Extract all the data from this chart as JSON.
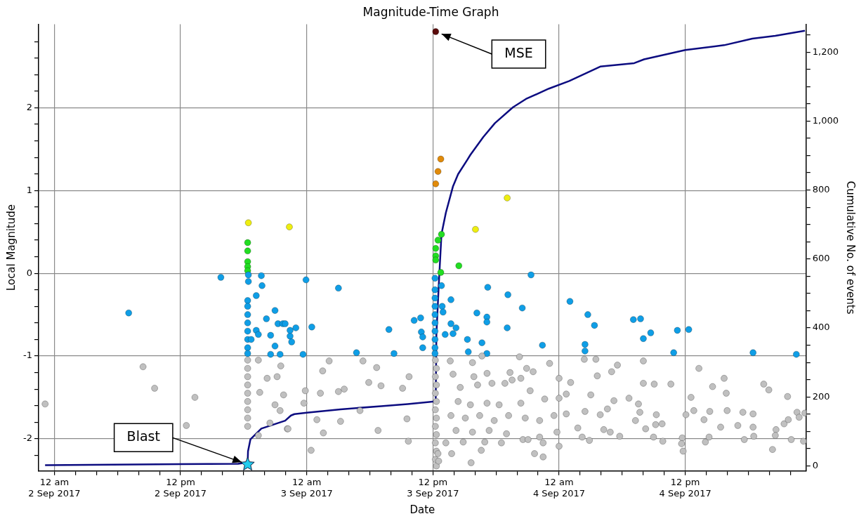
{
  "chart_data": {
    "type": "scatter",
    "title": "Magnitude-Time Graph",
    "xlabel": "Date",
    "ylabel": "Local Magnitude",
    "y2label": "Cumulative No. of events",
    "xlim": [
      "2017-09-01T22:30",
      "2017-09-04T23:30"
    ],
    "xticks": [
      {
        "value": "2017-09-02T00:00",
        "label": "12 am\n2 Sep 2017"
      },
      {
        "value": "2017-09-02T02:00",
        "label": null
      },
      {
        "value": "2017-09-02T04:00",
        "label": null
      },
      {
        "value": "2017-09-02T06:00",
        "label": null
      },
      {
        "value": "2017-09-02T08:00",
        "label": null
      },
      {
        "value": "2017-09-02T10:00",
        "label": null
      },
      {
        "value": "2017-09-02T12:00",
        "label": "12 pm\n2 Sep 2017"
      },
      {
        "value": "2017-09-02T14:00",
        "label": null
      },
      {
        "value": "2017-09-02T16:00",
        "label": null
      },
      {
        "value": "2017-09-02T18:00",
        "label": null
      },
      {
        "value": "2017-09-02T20:00",
        "label": null
      },
      {
        "value": "2017-09-02T22:00",
        "label": null
      },
      {
        "value": "2017-09-03T00:00",
        "label": "12 am\n3 Sep 2017"
      },
      {
        "value": "2017-09-03T02:00",
        "label": null
      },
      {
        "value": "2017-09-03T04:00",
        "label": null
      },
      {
        "value": "2017-09-03T06:00",
        "label": null
      },
      {
        "value": "2017-09-03T08:00",
        "label": null
      },
      {
        "value": "2017-09-03T10:00",
        "label": null
      },
      {
        "value": "2017-09-03T12:00",
        "label": "12 pm\n3 Sep 2017"
      },
      {
        "value": "2017-09-03T14:00",
        "label": null
      },
      {
        "value": "2017-09-03T16:00",
        "label": null
      },
      {
        "value": "2017-09-03T18:00",
        "label": null
      },
      {
        "value": "2017-09-03T20:00",
        "label": null
      },
      {
        "value": "2017-09-03T22:00",
        "label": null
      },
      {
        "value": "2017-09-04T00:00",
        "label": "12 am\n4 Sep 2017"
      },
      {
        "value": "2017-09-04T02:00",
        "label": null
      },
      {
        "value": "2017-09-04T04:00",
        "label": null
      },
      {
        "value": "2017-09-04T06:00",
        "label": null
      },
      {
        "value": "2017-09-04T08:00",
        "label": null
      },
      {
        "value": "2017-09-04T10:00",
        "label": null
      },
      {
        "value": "2017-09-04T12:00",
        "label": "12 pm\n4 Sep 2017"
      },
      {
        "value": "2017-09-04T14:00",
        "label": null
      },
      {
        "value": "2017-09-04T16:00",
        "label": null
      },
      {
        "value": "2017-09-04T18:00",
        "label": null
      },
      {
        "value": "2017-09-04T20:00",
        "label": null
      },
      {
        "value": "2017-09-04T22:00",
        "label": null
      }
    ],
    "ylim": [
      -2.39,
      3.01
    ],
    "yticks": [
      {
        "value": -2.2,
        "label": null
      },
      -2,
      {
        "value": -1.8,
        "label": null
      },
      {
        "value": -1.6,
        "label": null
      },
      {
        "value": -1.4,
        "label": null
      },
      {
        "value": -1.2,
        "label": null
      },
      -1,
      {
        "value": -0.8,
        "label": null
      },
      {
        "value": -0.6,
        "label": null
      },
      {
        "value": -0.4,
        "label": null
      },
      {
        "value": -0.2,
        "label": null
      },
      0,
      {
        "value": 0.2,
        "label": null
      },
      {
        "value": 0.4,
        "label": null
      },
      {
        "value": 0.6,
        "label": null
      },
      {
        "value": 0.8,
        "label": null
      },
      1,
      {
        "value": 1.2,
        "label": null
      },
      {
        "value": 1.4,
        "label": null
      },
      {
        "value": 1.6,
        "label": null
      },
      {
        "value": 1.8,
        "label": null
      },
      2,
      {
        "value": 2.2,
        "label": null
      },
      {
        "value": 2.4,
        "label": null
      },
      {
        "value": 2.6,
        "label": null
      },
      {
        "value": 2.8,
        "label": null
      }
    ],
    "y2lim": [
      -15,
      1281
    ],
    "y2ticks": [
      0,
      {
        "value": 50,
        "label": null
      },
      {
        "value": 100,
        "label": null
      },
      {
        "value": 150,
        "label": null
      },
      200,
      {
        "value": 250,
        "label": null
      },
      {
        "value": 300,
        "label": null
      },
      {
        "value": 350,
        "label": null
      },
      400,
      {
        "value": 450,
        "label": null
      },
      {
        "value": 500,
        "label": null
      },
      {
        "value": 550,
        "label": null
      },
      600,
      {
        "value": 650,
        "label": null
      },
      {
        "value": 700,
        "label": null
      },
      {
        "value": 750,
        "label": null
      },
      800,
      {
        "value": 850,
        "label": null
      },
      {
        "value": 900,
        "label": null
      },
      {
        "value": 950,
        "label": null
      },
      {
        "value": 1000,
        "label": "1,000"
      },
      {
        "value": 1050,
        "label": null
      },
      {
        "value": 1100,
        "label": null
      },
      {
        "value": 1150,
        "label": null
      },
      {
        "value": 1200,
        "label": "1,200"
      },
      {
        "value": 1250,
        "label": null
      }
    ],
    "grid": true,
    "legend": false,
    "marker": "circle",
    "annotations": [
      {
        "text": "MSE",
        "x": "2017-09-03T12:16",
        "y": 2.92
      },
      {
        "text": "Blast",
        "x": "2017-09-02T18:23",
        "y": -2.31
      }
    ],
    "series": [
      {
        "color": "#c0c0c0",
        "x": [
          "2017-09-01T23:07",
          "2017-09-02T08:26",
          "2017-09-02T09:32",
          "2017-09-02T13:22",
          "2017-09-02T12:33",
          "2017-09-02T18:23",
          "2017-09-02T18:23",
          "2017-09-02T18:23",
          "2017-09-02T18:23",
          "2017-09-02T18:23",
          "2017-09-02T18:23",
          "2017-09-02T18:23",
          "2017-09-02T18:23",
          "2017-09-02T18:23",
          "2017-09-02T19:24",
          "2017-09-02T20:14",
          "2017-09-02T21:11",
          "2017-09-02T21:32",
          "2017-09-02T19:32",
          "2017-09-02T20:59",
          "2017-09-02T21:48",
          "2017-09-02T21:28",
          "2017-09-02T19:24",
          "2017-09-02T22:09",
          "2017-09-02T20:30",
          "2017-09-03T02:08",
          "2017-09-03T01:31",
          "2017-09-03T01:18",
          "2017-09-03T03:01",
          "2017-09-03T03:34",
          "2017-09-03T00:58",
          "2017-09-03T01:35",
          "2017-09-03T03:13",
          "2017-09-03T00:25",
          "2017-09-03T05:21",
          "2017-09-03T05:54",
          "2017-09-03T07:04",
          "2017-09-03T06:39",
          "2017-09-03T05:04",
          "2017-09-03T06:47",
          "2017-09-03T09:07",
          "2017-09-03T09:44",
          "2017-09-03T09:32",
          "2017-09-03T09:40",
          "2017-09-02T23:44",
          "2017-09-02T23:52",
          "2017-09-02T22:13",
          "2017-09-03T12:14",
          "2017-09-03T12:20",
          "2017-09-03T12:14",
          "2017-09-03T12:20",
          "2017-09-03T12:14",
          "2017-09-03T12:20",
          "2017-09-03T12:14",
          "2017-09-03T12:20",
          "2017-09-03T12:14",
          "2017-09-03T12:20",
          "2017-09-03T12:14",
          "2017-09-03T12:20",
          "2017-09-03T12:14",
          "2017-09-03T12:20",
          "2017-09-03T13:39",
          "2017-09-03T15:46",
          "2017-09-03T16:40",
          "2017-09-03T20:14",
          "2017-09-03T23:06",
          "2017-09-03T13:55",
          "2017-09-03T15:54",
          "2017-09-03T17:09",
          "2017-09-03T19:20",
          "2017-09-03T20:55",
          "2017-09-03T21:32",
          "2017-09-03T19:32",
          "2017-09-03T20:22",
          "2017-09-04T00:00",
          "2017-09-03T14:36",
          "2017-09-03T16:15",
          "2017-09-03T17:37",
          "2017-09-03T18:51",
          "2017-09-03T21:15",
          "2017-09-04T00:41",
          "2017-09-03T14:24",
          "2017-09-03T15:34",
          "2017-09-03T17:09",
          "2017-09-03T18:18",
          "2017-09-03T20:22",
          "2017-09-03T22:38",
          "2017-09-04T00:00",
          "2017-09-03T13:43",
          "2017-09-03T15:05",
          "2017-09-03T16:27",
          "2017-09-03T17:50",
          "2017-09-03T19:12",
          "2017-09-03T20:47",
          "2017-09-03T22:09",
          "2017-09-03T23:31",
          "2017-09-04T00:41",
          "2017-09-03T14:12",
          "2017-09-03T15:46",
          "2017-09-03T17:21",
          "2017-09-03T19:00",
          "2017-09-03T20:34",
          "2017-09-03T22:09",
          "2017-09-03T23:48",
          "2017-09-03T13:14",
          "2017-09-03T14:53",
          "2017-09-03T16:56",
          "2017-09-03T18:31",
          "2017-09-03T21:03",
          "2017-09-03T22:29",
          "2017-09-04T00:00",
          "2017-09-03T13:47",
          "2017-09-03T16:36",
          "2017-09-03T15:38",
          "2017-09-03T21:40",
          "2017-09-03T22:29",
          "2017-09-03T12:33",
          "2017-09-03T12:29",
          "2017-09-04T02:24",
          "2017-09-04T03:30",
          "2017-09-04T05:33",
          "2017-09-04T05:00",
          "2017-09-04T03:38",
          "2017-09-04T01:06",
          "2017-09-04T08:01",
          "2017-09-04T08:01",
          "2017-09-04T09:03",
          "2017-09-04T10:38",
          "2017-09-04T13:18",
          "2017-09-04T15:42",
          "2017-09-04T14:36",
          "2017-09-04T12:33",
          "2017-09-04T15:54",
          "2017-09-04T19:28",
          "2017-09-04T19:57",
          "2017-09-04T21:44",
          "2017-09-04T06:39",
          "2017-09-04T07:33",
          "2017-09-04T05:13",
          "2017-09-04T03:01",
          "2017-09-04T02:28",
          "2017-09-04T03:55",
          "2017-09-04T04:36",
          "2017-09-04T07:41",
          "2017-09-04T09:15",
          "2017-09-04T12:04",
          "2017-09-04T12:49",
          "2017-09-04T14:20",
          "2017-09-04T15:59",
          "2017-09-04T17:29",
          "2017-09-04T18:27",
          "2017-09-04T22:38",
          "2017-09-04T23:23",
          "2017-09-04T22:50",
          "2017-09-04T04:52",
          "2017-09-04T04:15",
          "2017-09-04T01:47",
          "2017-09-04T07:16",
          "2017-09-04T08:14",
          "2017-09-04T09:11",
          "2017-09-04T09:48",
          "2017-09-04T13:47",
          "2017-09-04T15:22",
          "2017-09-04T17:00",
          "2017-09-04T18:27",
          "2017-09-04T21:24",
          "2017-09-04T21:48",
          "2017-09-04T20:38",
          "2017-09-04T05:46",
          "2017-09-04T08:59",
          "2017-09-04T09:52",
          "2017-09-04T11:43",
          "2017-09-04T13:55",
          "2017-09-04T14:16",
          "2017-09-04T17:37",
          "2017-09-04T18:31",
          "2017-09-04T20:34",
          "2017-09-04T22:05",
          "2017-09-04T23:15",
          "2017-09-04T11:39",
          "2017-09-04T11:48",
          "2017-09-04T20:18",
          "2017-09-04T02:53",
          "2017-09-04T02:12"
        ],
        "values": [
          -1.58,
          -1.13,
          -1.39,
          -1.5,
          -1.84,
          -1.05,
          -1.15,
          -1.25,
          -1.35,
          -1.45,
          -1.55,
          -1.65,
          -1.75,
          -1.85,
          -1.05,
          -1.27,
          -1.25,
          -1.12,
          -1.44,
          -1.59,
          -1.47,
          -1.66,
          -1.96,
          -1.88,
          -1.81,
          -1.06,
          -1.18,
          -1.45,
          -1.43,
          -1.4,
          -1.77,
          -1.93,
          -1.79,
          -2.14,
          -1.06,
          -1.32,
          -1.36,
          -1.14,
          -1.66,
          -1.9,
          -1.39,
          -1.25,
          -1.76,
          -2.03,
          -1.57,
          -1.42,
          -1.88,
          -1.05,
          -1.15,
          -1.25,
          -1.35,
          -1.45,
          -1.55,
          -1.65,
          -1.75,
          -1.85,
          -1.95,
          -2.05,
          -2.15,
          -2.25,
          -2.33,
          -1.06,
          -1.08,
          -1.0,
          -1.01,
          -1.09,
          -1.22,
          -1.25,
          -1.21,
          -1.2,
          -1.15,
          -1.19,
          -1.29,
          -1.27,
          -1.27,
          -1.38,
          -1.35,
          -1.33,
          -1.33,
          -1.42,
          -1.46,
          -1.55,
          -1.59,
          -1.57,
          -1.59,
          -1.57,
          -1.52,
          -1.51,
          -1.72,
          -1.75,
          -1.72,
          -1.78,
          -1.72,
          -1.75,
          -1.78,
          -1.72,
          -1.7,
          -1.9,
          -1.92,
          -1.9,
          -1.94,
          -2.01,
          -1.98,
          -1.92,
          -2.05,
          -2.04,
          -2.04,
          -2.05,
          -2.01,
          -2.05,
          -2.09,
          -2.18,
          -2.14,
          -2.29,
          -2.18,
          -2.22,
          -2.27,
          -2.18,
          -1.04,
          -1.04,
          -1.11,
          -1.19,
          -1.24,
          -1.32,
          -1.06,
          -1.33,
          -1.34,
          -1.34,
          -1.15,
          -1.27,
          -1.37,
          -1.5,
          -1.45,
          -1.34,
          -1.41,
          -1.49,
          -1.51,
          -1.58,
          -1.54,
          -1.47,
          -1.67,
          -1.71,
          -1.64,
          -1.68,
          -1.71,
          -1.71,
          -1.66,
          -1.67,
          -1.66,
          -1.68,
          -1.7,
          -1.68,
          -1.69,
          -1.74,
          -1.92,
          -1.89,
          -1.87,
          -1.78,
          -1.88,
          -1.83,
          -1.82,
          -1.77,
          -1.86,
          -1.84,
          -1.86,
          -1.82,
          -1.77,
          -1.89,
          -1.97,
          -1.98,
          -2.03,
          -1.99,
          -2.04,
          -1.98,
          -2.01,
          -1.97,
          -1.96,
          -2.01,
          -2.03,
          -2.06,
          -2.15,
          -2.13,
          -2.02,
          -1.98
        ]
      },
      {
        "color": "#0f9ee6",
        "x": [
          "2017-09-02T07:04",
          "2017-09-02T15:50",
          "2017-09-02T18:27",
          "2017-09-02T18:27",
          "2017-09-02T19:41",
          "2017-09-02T19:45",
          "2017-09-02T19:12",
          "2017-09-02T18:23",
          "2017-09-02T18:23",
          "2017-09-02T18:23",
          "2017-09-02T18:23",
          "2017-09-02T18:23",
          "2017-09-02T18:23",
          "2017-09-02T18:23",
          "2017-09-02T18:23",
          "2017-09-02T20:59",
          "2017-09-02T20:10",
          "2017-09-02T21:16",
          "2017-09-02T21:44",
          "2017-09-02T19:12",
          "2017-09-02T19:24",
          "2017-09-02T20:34",
          "2017-09-02T18:43",
          "2017-09-02T20:59",
          "2017-09-02T20:34",
          "2017-09-02T21:28",
          "2017-09-02T22:25",
          "2017-09-02T21:57",
          "2017-09-02T22:25",
          "2017-09-02T22:58",
          "2017-09-02T22:34",
          "2017-09-02T23:39",
          "2017-09-02T23:56",
          "2017-09-03T00:29",
          "2017-09-03T03:01",
          "2017-09-03T04:44",
          "2017-09-03T07:49",
          "2017-09-03T08:18",
          "2017-09-03T10:13",
          "2017-09-03T10:50",
          "2017-09-03T10:54",
          "2017-09-03T11:02",
          "2017-09-03T11:02",
          "2017-09-03T12:12",
          "2017-09-03T12:12",
          "2017-09-03T12:12",
          "2017-09-03T12:12",
          "2017-09-03T12:12",
          "2017-09-03T12:12",
          "2017-09-03T12:12",
          "2017-09-03T12:12",
          "2017-09-03T12:12",
          "2017-09-03T12:12",
          "2017-09-03T12:49",
          "2017-09-03T13:43",
          "2017-09-03T12:53",
          "2017-09-03T12:58",
          "2017-09-03T13:43",
          "2017-09-03T14:12",
          "2017-09-03T13:55",
          "2017-09-03T13:10",
          "2017-09-03T15:17",
          "2017-09-03T15:22",
          "2017-09-03T16:11",
          "2017-09-03T16:40",
          "2017-09-03T17:08",
          "2017-09-03T17:08",
          "2017-09-03T17:13",
          "2017-09-03T17:08",
          "2017-09-03T19:08",
          "2017-09-03T19:04",
          "2017-09-03T20:30",
          "2017-09-03T21:20",
          "2017-09-03T22:25",
          "2017-09-04T01:02",
          "2017-09-04T02:44",
          "2017-09-04T03:22",
          "2017-09-04T02:28",
          "2017-09-04T02:28",
          "2017-09-04T07:04",
          "2017-09-04T07:45",
          "2017-09-04T08:01",
          "2017-09-04T08:43",
          "2017-09-04T10:54",
          "2017-09-04T11:15",
          "2017-09-04T12:20",
          "2017-09-04T18:27",
          "2017-09-04T22:34"
        ],
        "values": [
          -0.48,
          -0.05,
          -0.02,
          -0.1,
          -0.03,
          -0.15,
          -0.27,
          -0.33,
          -0.4,
          -0.5,
          -0.6,
          -0.7,
          -0.8,
          -0.9,
          -0.97,
          -0.45,
          -0.55,
          -0.61,
          -0.61,
          -0.69,
          -0.74,
          -0.75,
          -0.8,
          -0.88,
          -0.98,
          -0.98,
          -0.76,
          -0.61,
          -0.69,
          -0.66,
          -0.83,
          -0.98,
          -0.08,
          -0.65,
          -0.18,
          -0.96,
          -0.68,
          -0.97,
          -0.57,
          -0.54,
          -0.71,
          -0.77,
          -0.9,
          -0.06,
          -0.2,
          -0.3,
          -0.4,
          -0.5,
          -0.6,
          -0.7,
          -0.8,
          -0.9,
          -0.97,
          -0.15,
          -0.32,
          -0.4,
          -0.47,
          -0.61,
          -0.66,
          -0.73,
          -0.74,
          -0.8,
          -0.95,
          -0.48,
          -0.84,
          -0.53,
          -0.59,
          -0.17,
          -0.97,
          -0.26,
          -0.66,
          -0.42,
          -0.02,
          -0.87,
          -0.34,
          -0.5,
          -0.63,
          -0.86,
          -0.94,
          -0.56,
          -0.55,
          -0.79,
          -0.72,
          -0.96,
          -0.69,
          -0.68,
          -0.96,
          -0.98
        ]
      },
      {
        "color": "#22dd22",
        "x": [
          "2017-09-02T18:23",
          "2017-09-02T18:23",
          "2017-09-02T18:23",
          "2017-09-02T18:23",
          "2017-09-02T18:23",
          "2017-09-03T12:49",
          "2017-09-03T12:29",
          "2017-09-03T12:16",
          "2017-09-03T12:16",
          "2017-09-03T12:16",
          "2017-09-03T12:45",
          "2017-09-03T14:28"
        ],
        "values": [
          0.37,
          0.27,
          0.14,
          0.08,
          0.03,
          0.47,
          0.4,
          0.3,
          0.21,
          0.16,
          0.01,
          0.09
        ]
      },
      {
        "color": "#eeee11",
        "x": [
          "2017-09-02T18:27",
          "2017-09-02T22:21",
          "2017-09-03T16:03",
          "2017-09-03T19:04"
        ],
        "values": [
          0.61,
          0.56,
          0.53,
          0.91
        ]
      },
      {
        "color": "#e08a0a",
        "x": [
          "2017-09-03T12:16",
          "2017-09-03T12:29",
          "2017-09-03T12:45"
        ],
        "values": [
          1.08,
          1.23,
          1.38
        ]
      },
      {
        "color": "#5a0a0a",
        "x": [
          "2017-09-03T12:16"
        ],
        "values": [
          2.92
        ]
      },
      {
        "type": "line",
        "axis": "y2",
        "marker": "none",
        "color": "#0c0c80",
        "x": [
          "2017-09-01T23:07",
          "2017-09-02T17:29",
          "2017-09-02T18:23",
          "2017-09-02T18:25",
          "2017-09-02T18:39",
          "2017-09-02T19:41",
          "2017-09-02T21:57",
          "2017-09-02T22:30",
          "2017-09-02T22:50",
          "2017-09-03T00:00",
          "2017-09-03T03:13",
          "2017-09-03T07:04",
          "2017-09-03T09:36",
          "2017-09-03T11:39",
          "2017-09-03T12:16",
          "2017-09-03T12:20",
          "2017-09-03T12:33",
          "2017-09-03T12:49",
          "2017-09-03T13:14",
          "2017-09-03T13:55",
          "2017-09-03T14:24",
          "2017-09-03T15:17",
          "2017-09-03T15:34",
          "2017-09-03T16:48",
          "2017-09-03T17:54",
          "2017-09-03T19:37",
          "2017-09-03T20:51",
          "2017-09-03T23:02",
          "2017-09-04T00:58",
          "2017-09-04T03:55",
          "2017-09-04T07:09",
          "2017-09-04T08:05",
          "2017-09-04T12:00",
          "2017-09-04T15:42",
          "2017-09-04T18:23",
          "2017-09-04T20:34",
          "2017-09-04T23:23"
        ],
        "values": [
          2,
          6,
          10,
          42,
          77,
          108,
          131,
          146,
          150,
          154,
          164,
          173,
          179,
          185,
          187,
          380,
          520,
          672,
          734,
          811,
          846,
          888,
          902,
          954,
          994,
          1040,
          1064,
          1094,
          1116,
          1158,
          1168,
          1179,
          1206,
          1220,
          1239,
          1247,
          1262
        ]
      },
      {
        "marker": "star",
        "color": "#22ccee",
        "x": [
          "2017-09-02T18:23"
        ],
        "values": [
          -2.31
        ]
      }
    ]
  }
}
